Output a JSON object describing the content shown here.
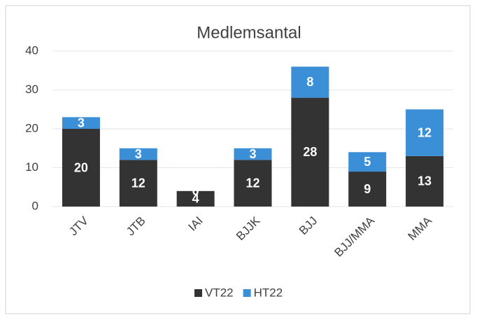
{
  "chart_data": {
    "type": "stacked_bar",
    "title": "Medlemsantal",
    "categories": [
      "JTV",
      "JTB",
      "IAI",
      "BJJK",
      "BJJ",
      "BJJ/MMA",
      "MMA"
    ],
    "series": [
      {
        "name": "VT22",
        "color": "#333333",
        "values": [
          20,
          12,
          4,
          12,
          28,
          9,
          13
        ]
      },
      {
        "name": "HT22",
        "color": "#3b8fd6",
        "values": [
          3,
          3,
          0,
          3,
          8,
          5,
          12
        ]
      }
    ],
    "ylim": [
      0,
      40
    ],
    "yticks": [
      0,
      10,
      20,
      30,
      40
    ],
    "grid": true,
    "legend": "bottom"
  }
}
